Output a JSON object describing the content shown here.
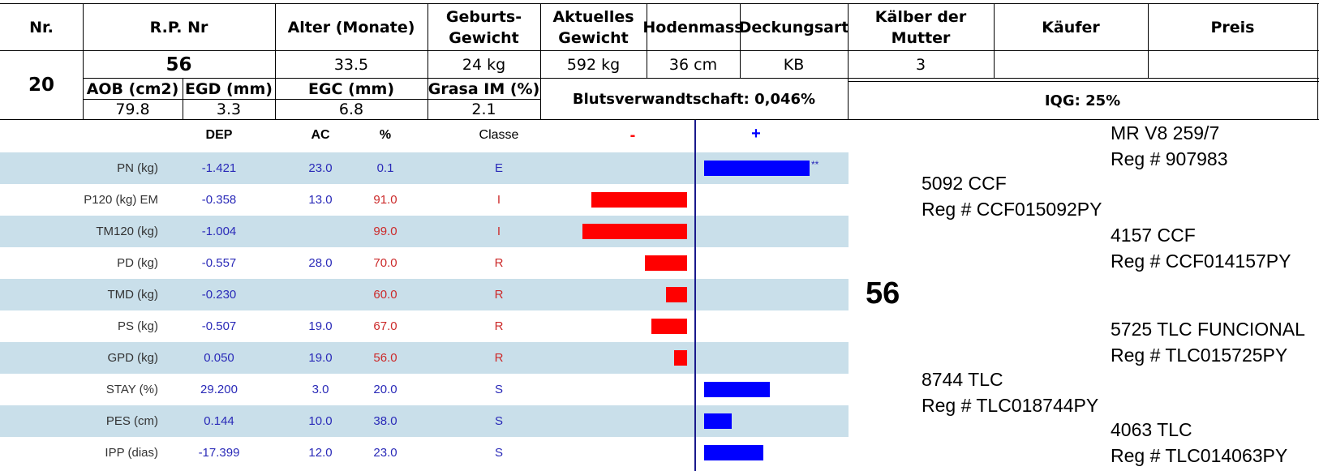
{
  "colors": {
    "row_band": "#c9dfea",
    "negative_bar": "#ff0000",
    "positive_bar": "#0000ff",
    "blue_text": "#2a2ab8",
    "red_text": "#cc2a2a",
    "axis": "#1a1a8c"
  },
  "header": {
    "nr": "Nr.",
    "rp_nr": "R.P. Nr",
    "alter": "Alter (Monate)",
    "geburts_gewicht": [
      "Geburts-",
      "Gewicht"
    ],
    "aktuelles_gewicht": [
      "Aktuelles",
      "Gewicht"
    ],
    "hodenmass": "Hodenmass",
    "deckungsart": "Deckungsart",
    "kaelber": [
      "Kälber der",
      "Mutter"
    ],
    "kaeufer": "Käufer",
    "preis": "Preis"
  },
  "animal": {
    "nr": "20",
    "rp_nr": "56",
    "alter": "33.5",
    "geburts_gewicht": "24 kg",
    "aktuelles_gewicht": "592 kg",
    "hodenmass": "36 cm",
    "deckungsart": "KB",
    "kaelber": "3",
    "kaeufer": "",
    "preis": ""
  },
  "carcass": {
    "labels": {
      "aob": "AOB (cm2)",
      "egd": "EGD (mm)",
      "egc": "EGC (mm)",
      "grasa": "Grasa IM (%)"
    },
    "values": {
      "aob": "79.8",
      "egd": "3.3",
      "egc": "6.8",
      "grasa": "2.1"
    }
  },
  "blutsverwandtschaft": "Blutsverwandtschaft: 0,046%",
  "iqg": "IQG: 25%",
  "epd": {
    "headers": {
      "dep": "DEP",
      "ac": "AC",
      "pct": "%",
      "classe": "Classe",
      "minus": "-",
      "plus": "+"
    },
    "bar_full_pct": 100,
    "rows": [
      {
        "label": "PN (kg)",
        "dep": "-1.421",
        "ac": "23.0",
        "pct": "0.1",
        "classe": "E",
        "side": "plus",
        "bar_pct": 99.9,
        "note": "**",
        "pct_color": "blue"
      },
      {
        "label": "P120 (kg) EM",
        "dep": "-0.358",
        "ac": "13.0",
        "pct": "91.0",
        "classe": "I",
        "side": "minus",
        "bar_pct": 91,
        "note": "",
        "pct_color": "red"
      },
      {
        "label": "TM120 (kg)",
        "dep": "-1.004",
        "ac": "",
        "pct": "99.0",
        "classe": "I",
        "side": "minus",
        "bar_pct": 99,
        "note": "",
        "pct_color": "red"
      },
      {
        "label": "PD (kg)",
        "dep": "-0.557",
        "ac": "28.0",
        "pct": "70.0",
        "classe": "R",
        "side": "minus",
        "bar_pct": 40,
        "note": "",
        "pct_color": "red"
      },
      {
        "label": "TMD (kg)",
        "dep": "-0.230",
        "ac": "",
        "pct": "60.0",
        "classe": "R",
        "side": "minus",
        "bar_pct": 20,
        "note": "",
        "pct_color": "red"
      },
      {
        "label": "PS (kg)",
        "dep": "-0.507",
        "ac": "19.0",
        "pct": "67.0",
        "classe": "R",
        "side": "minus",
        "bar_pct": 34,
        "note": "",
        "pct_color": "red"
      },
      {
        "label": "GPD (kg)",
        "dep": "0.050",
        "ac": "19.0",
        "pct": "56.0",
        "classe": "R",
        "side": "minus",
        "bar_pct": 12,
        "note": "",
        "pct_color": "red"
      },
      {
        "label": "STAY (%)",
        "dep": "29.200",
        "ac": "3.0",
        "pct": "20.0",
        "classe": "S",
        "side": "plus",
        "bar_pct": 62,
        "note": "",
        "pct_color": "blue"
      },
      {
        "label": "PES (cm)",
        "dep": "0.144",
        "ac": "10.0",
        "pct": "38.0",
        "classe": "S",
        "side": "plus",
        "bar_pct": 26,
        "note": "",
        "pct_color": "blue"
      },
      {
        "label": "IPP (dias)",
        "dep": "-17.399",
        "ac": "12.0",
        "pct": "23.0",
        "classe": "S",
        "side": "plus",
        "bar_pct": 56,
        "note": "",
        "pct_color": "blue"
      }
    ]
  },
  "pedigree": {
    "subject": "56",
    "sire": {
      "name": "5092 CCF",
      "reg": "Reg # CCF015092PY"
    },
    "sire_sire": {
      "name": "MR V8 259/7",
      "reg": "Reg # 907983"
    },
    "sire_dam": {
      "name": "4157 CCF",
      "reg": "Reg # CCF014157PY"
    },
    "dam": {
      "name": "8744 TLC",
      "reg": "Reg # TLC018744PY"
    },
    "dam_sire": {
      "name": "5725 TLC FUNCIONAL",
      "reg": "Reg # TLC015725PY"
    },
    "dam_dam": {
      "name": "4063 TLC",
      "reg": "Reg # TLC014063PY"
    }
  }
}
